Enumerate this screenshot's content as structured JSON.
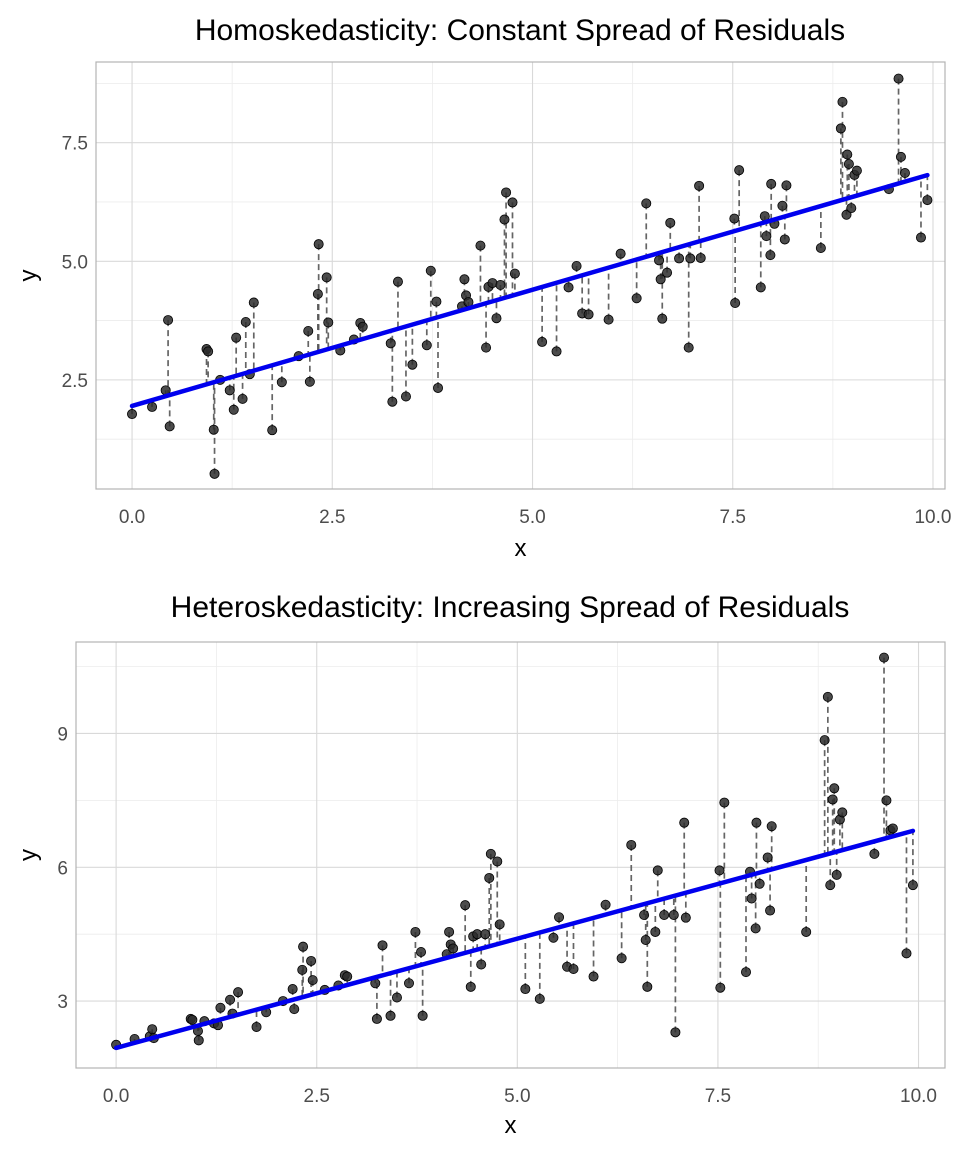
{
  "chart_data": [
    {
      "type": "scatter",
      "title": "Homoskedasticity: Constant Spread of Residuals",
      "xlabel": "x",
      "ylabel": "y",
      "xlim": [
        -0.45,
        10.15
      ],
      "ylim": [
        0.2,
        9.2
      ],
      "xticks": [
        0,
        2.5,
        5,
        7.5,
        10
      ],
      "xtick_labels": [
        "0.0",
        "2.5",
        "5.0",
        "7.5",
        "10.0"
      ],
      "yticks": [
        2.5,
        5,
        7.5
      ],
      "ytick_labels": [
        "2.5",
        "5.0",
        "7.5"
      ],
      "grid": true,
      "fit_line": {
        "intercept": 1.95,
        "slope": 0.49,
        "color": "#0000ee"
      },
      "residual_style": "dashed segments from point to fitted line",
      "points": [
        [
          0.0,
          1.78
        ],
        [
          0.25,
          1.93
        ],
        [
          0.42,
          2.28
        ],
        [
          0.45,
          3.76
        ],
        [
          0.47,
          1.52
        ],
        [
          0.93,
          3.15
        ],
        [
          0.95,
          3.1
        ],
        [
          1.02,
          1.45
        ],
        [
          1.03,
          0.52
        ],
        [
          1.1,
          2.5
        ],
        [
          1.22,
          2.28
        ],
        [
          1.27,
          1.87
        ],
        [
          1.3,
          3.39
        ],
        [
          1.38,
          2.1
        ],
        [
          1.42,
          3.72
        ],
        [
          1.47,
          2.62
        ],
        [
          1.52,
          4.13
        ],
        [
          1.75,
          1.44
        ],
        [
          1.87,
          2.45
        ],
        [
          2.08,
          3.0
        ],
        [
          2.2,
          3.53
        ],
        [
          2.22,
          2.46
        ],
        [
          2.32,
          4.31
        ],
        [
          2.33,
          5.36
        ],
        [
          2.43,
          4.66
        ],
        [
          2.45,
          3.71
        ],
        [
          2.6,
          3.12
        ],
        [
          2.77,
          3.35
        ],
        [
          2.85,
          3.7
        ],
        [
          2.88,
          3.62
        ],
        [
          3.23,
          3.27
        ],
        [
          3.25,
          2.04
        ],
        [
          3.32,
          4.57
        ],
        [
          3.42,
          2.15
        ],
        [
          3.5,
          2.82
        ],
        [
          3.68,
          3.23
        ],
        [
          3.73,
          4.8
        ],
        [
          3.8,
          4.15
        ],
        [
          3.82,
          2.33
        ],
        [
          4.12,
          4.05
        ],
        [
          4.15,
          4.62
        ],
        [
          4.17,
          4.28
        ],
        [
          4.2,
          4.14
        ],
        [
          4.35,
          5.33
        ],
        [
          4.42,
          3.18
        ],
        [
          4.45,
          4.46
        ],
        [
          4.5,
          4.54
        ],
        [
          4.55,
          3.8
        ],
        [
          4.6,
          4.5
        ],
        [
          4.65,
          5.88
        ],
        [
          4.67,
          6.45
        ],
        [
          4.75,
          6.24
        ],
        [
          4.78,
          4.74
        ],
        [
          5.12,
          3.3
        ],
        [
          5.3,
          3.1
        ],
        [
          5.45,
          4.45
        ],
        [
          5.55,
          4.9
        ],
        [
          5.62,
          3.9
        ],
        [
          5.7,
          3.88
        ],
        [
          5.95,
          3.77
        ],
        [
          6.1,
          5.16
        ],
        [
          6.3,
          4.22
        ],
        [
          6.42,
          6.22
        ],
        [
          6.58,
          5.02
        ],
        [
          6.6,
          4.62
        ],
        [
          6.62,
          3.79
        ],
        [
          6.68,
          4.76
        ],
        [
          6.72,
          5.81
        ],
        [
          6.83,
          5.06
        ],
        [
          6.95,
          3.18
        ],
        [
          6.97,
          5.06
        ],
        [
          7.08,
          6.59
        ],
        [
          7.1,
          5.07
        ],
        [
          7.52,
          5.9
        ],
        [
          7.53,
          4.12
        ],
        [
          7.58,
          6.92
        ],
        [
          7.85,
          4.45
        ],
        [
          7.9,
          5.95
        ],
        [
          7.92,
          5.53
        ],
        [
          7.97,
          5.13
        ],
        [
          7.98,
          6.63
        ],
        [
          8.02,
          5.79
        ],
        [
          8.12,
          6.17
        ],
        [
          8.15,
          5.46
        ],
        [
          8.17,
          6.6
        ],
        [
          8.6,
          5.28
        ],
        [
          8.85,
          7.8
        ],
        [
          8.87,
          8.36
        ],
        [
          8.92,
          5.98
        ],
        [
          8.93,
          7.25
        ],
        [
          8.95,
          7.05
        ],
        [
          8.98,
          6.12
        ],
        [
          9.02,
          6.82
        ],
        [
          9.05,
          6.91
        ],
        [
          9.45,
          6.52
        ],
        [
          9.57,
          8.85
        ],
        [
          9.6,
          7.2
        ],
        [
          9.65,
          6.86
        ],
        [
          9.85,
          5.5
        ],
        [
          9.93,
          6.29
        ]
      ]
    },
    {
      "type": "scatter",
      "title": "Heteroskedasticity: Increasing Spread of Residuals",
      "xlabel": "x",
      "ylabel": "y",
      "xlim": [
        -0.5,
        10.33
      ],
      "ylim": [
        1.5,
        11.05
      ],
      "xticks": [
        0,
        2.5,
        5,
        7.5,
        10
      ],
      "xtick_labels": [
        "0.0",
        "2.5",
        "5.0",
        "7.5",
        "10.0"
      ],
      "yticks": [
        3,
        6,
        9
      ],
      "ytick_labels": [
        "3",
        "6",
        "9"
      ],
      "grid": true,
      "fit_line": {
        "intercept": 1.95,
        "slope": 0.49,
        "color": "#0000ee"
      },
      "residual_style": "dashed segments from point to fitted line",
      "points": [
        [
          0.0,
          2.02
        ],
        [
          0.23,
          2.15
        ],
        [
          0.42,
          2.21
        ],
        [
          0.45,
          2.37
        ],
        [
          0.47,
          2.17
        ],
        [
          0.93,
          2.6
        ],
        [
          0.95,
          2.58
        ],
        [
          1.02,
          2.33
        ],
        [
          1.03,
          2.12
        ],
        [
          1.1,
          2.55
        ],
        [
          1.22,
          2.5
        ],
        [
          1.27,
          2.46
        ],
        [
          1.3,
          2.85
        ],
        [
          1.42,
          3.03
        ],
        [
          1.45,
          2.72
        ],
        [
          1.52,
          3.2
        ],
        [
          1.75,
          2.42
        ],
        [
          1.87,
          2.75
        ],
        [
          2.08,
          3.0
        ],
        [
          2.2,
          3.27
        ],
        [
          2.22,
          2.82
        ],
        [
          2.32,
          3.7
        ],
        [
          2.33,
          4.22
        ],
        [
          2.43,
          3.9
        ],
        [
          2.45,
          3.47
        ],
        [
          2.6,
          3.25
        ],
        [
          2.77,
          3.35
        ],
        [
          2.85,
          3.58
        ],
        [
          2.88,
          3.55
        ],
        [
          3.23,
          3.4
        ],
        [
          3.25,
          2.6
        ],
        [
          3.32,
          4.25
        ],
        [
          3.42,
          2.67
        ],
        [
          3.5,
          3.08
        ],
        [
          3.65,
          3.4
        ],
        [
          3.73,
          4.55
        ],
        [
          3.8,
          4.1
        ],
        [
          3.82,
          2.67
        ],
        [
          4.12,
          4.05
        ],
        [
          4.15,
          4.55
        ],
        [
          4.17,
          4.27
        ],
        [
          4.2,
          4.18
        ],
        [
          4.35,
          5.15
        ],
        [
          4.42,
          3.32
        ],
        [
          4.45,
          4.45
        ],
        [
          4.5,
          4.5
        ],
        [
          4.55,
          3.82
        ],
        [
          4.6,
          4.5
        ],
        [
          4.65,
          5.76
        ],
        [
          4.67,
          6.3
        ],
        [
          4.75,
          6.13
        ],
        [
          4.78,
          4.72
        ],
        [
          5.1,
          3.27
        ],
        [
          5.28,
          3.05
        ],
        [
          5.45,
          4.42
        ],
        [
          5.52,
          4.88
        ],
        [
          5.62,
          3.77
        ],
        [
          5.7,
          3.72
        ],
        [
          5.95,
          3.55
        ],
        [
          6.1,
          5.16
        ],
        [
          6.3,
          3.96
        ],
        [
          6.42,
          6.5
        ],
        [
          6.58,
          4.93
        ],
        [
          6.6,
          4.37
        ],
        [
          6.62,
          3.32
        ],
        [
          6.72,
          4.55
        ],
        [
          6.75,
          5.93
        ],
        [
          6.83,
          4.93
        ],
        [
          6.95,
          4.93
        ],
        [
          6.97,
          2.3
        ],
        [
          7.08,
          7.0
        ],
        [
          7.1,
          4.87
        ],
        [
          7.52,
          5.93
        ],
        [
          7.53,
          3.3
        ],
        [
          7.58,
          7.45
        ],
        [
          7.85,
          3.65
        ],
        [
          7.9,
          5.9
        ],
        [
          7.92,
          5.3
        ],
        [
          7.97,
          4.63
        ],
        [
          7.98,
          7.0
        ],
        [
          8.02,
          5.63
        ],
        [
          8.12,
          6.22
        ],
        [
          8.15,
          5.03
        ],
        [
          8.17,
          6.92
        ],
        [
          8.6,
          4.55
        ],
        [
          8.83,
          8.85
        ],
        [
          8.87,
          9.82
        ],
        [
          8.9,
          5.6
        ],
        [
          8.93,
          7.52
        ],
        [
          8.95,
          7.77
        ],
        [
          8.98,
          5.83
        ],
        [
          9.02,
          7.07
        ],
        [
          9.05,
          7.23
        ],
        [
          9.45,
          6.3
        ],
        [
          9.57,
          10.7
        ],
        [
          9.6,
          7.5
        ],
        [
          9.65,
          6.83
        ],
        [
          9.68,
          6.87
        ],
        [
          9.85,
          4.07
        ],
        [
          9.93,
          5.6
        ]
      ]
    }
  ]
}
